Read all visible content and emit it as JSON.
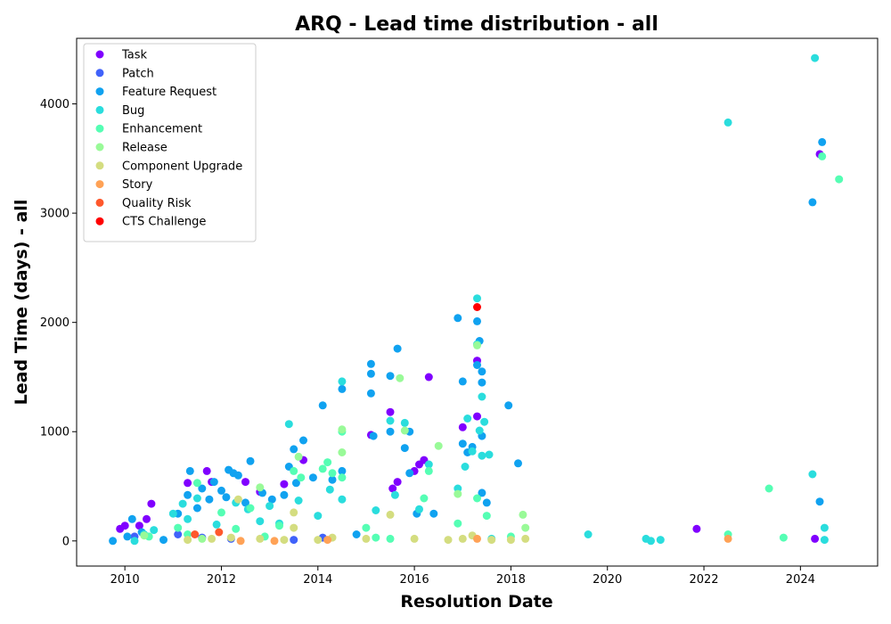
{
  "chart_data": {
    "type": "scatter",
    "title": "ARQ - Lead time distribution - all",
    "xlabel": "Resolution Date",
    "ylabel": "Lead Time (days) - all",
    "xlim": [
      2009.0,
      2025.6
    ],
    "ylim": [
      -230,
      4600
    ],
    "x_ticks": [
      2010,
      2012,
      2014,
      2016,
      2018,
      2020,
      2022,
      2024
    ],
    "y_ticks": [
      0,
      1000,
      2000,
      3000,
      4000
    ],
    "grid": false,
    "legend_position": "top-left",
    "series": [
      {
        "name": "Task",
        "color": "#8000ff",
        "points": [
          [
            2009.9,
            110
          ],
          [
            2010.0,
            140
          ],
          [
            2010.3,
            140
          ],
          [
            2010.45,
            200
          ],
          [
            2010.55,
            340
          ],
          [
            2011.3,
            530
          ],
          [
            2011.7,
            640
          ],
          [
            2011.8,
            540
          ],
          [
            2012.5,
            540
          ],
          [
            2012.8,
            450
          ],
          [
            2013.3,
            520
          ],
          [
            2013.7,
            740
          ],
          [
            2015.1,
            970
          ],
          [
            2015.5,
            1180
          ],
          [
            2015.55,
            480
          ],
          [
            2015.65,
            540
          ],
          [
            2016.0,
            640
          ],
          [
            2016.1,
            700
          ],
          [
            2016.2,
            740
          ],
          [
            2016.3,
            1500
          ],
          [
            2017.0,
            1040
          ],
          [
            2017.3,
            1650
          ],
          [
            2017.3,
            1140
          ],
          [
            2021.85,
            110
          ],
          [
            2024.3,
            20
          ],
          [
            2024.4,
            3540
          ]
        ]
      },
      {
        "name": "Patch",
        "color": "#4062fa",
        "points": [
          [
            2010.2,
            40
          ],
          [
            2011.1,
            60
          ],
          [
            2011.6,
            30
          ],
          [
            2012.2,
            20
          ],
          [
            2013.5,
            10
          ],
          [
            2014.1,
            30
          ]
        ]
      },
      {
        "name": "Feature Request",
        "color": "#10a2f0",
        "points": [
          [
            2009.75,
            0
          ],
          [
            2010.05,
            40
          ],
          [
            2010.15,
            200
          ],
          [
            2010.35,
            80
          ],
          [
            2010.8,
            10
          ],
          [
            2011.1,
            250
          ],
          [
            2011.3,
            420
          ],
          [
            2011.35,
            640
          ],
          [
            2011.5,
            300
          ],
          [
            2011.6,
            480
          ],
          [
            2011.75,
            380
          ],
          [
            2011.85,
            540
          ],
          [
            2012.0,
            460
          ],
          [
            2012.1,
            400
          ],
          [
            2012.15,
            650
          ],
          [
            2012.25,
            620
          ],
          [
            2012.35,
            600
          ],
          [
            2012.5,
            350
          ],
          [
            2012.6,
            730
          ],
          [
            2012.85,
            440
          ],
          [
            2013.05,
            380
          ],
          [
            2013.3,
            420
          ],
          [
            2013.4,
            680
          ],
          [
            2013.5,
            840
          ],
          [
            2013.55,
            530
          ],
          [
            2013.7,
            920
          ],
          [
            2013.9,
            580
          ],
          [
            2014.1,
            1240
          ],
          [
            2014.3,
            560
          ],
          [
            2014.5,
            1390
          ],
          [
            2014.5,
            640
          ],
          [
            2014.8,
            60
          ],
          [
            2015.1,
            1620
          ],
          [
            2015.1,
            1530
          ],
          [
            2015.1,
            1350
          ],
          [
            2015.15,
            960
          ],
          [
            2015.5,
            1510
          ],
          [
            2015.5,
            1000
          ],
          [
            2015.65,
            1760
          ],
          [
            2015.8,
            850
          ],
          [
            2015.9,
            1000
          ],
          [
            2015.9,
            620
          ],
          [
            2016.05,
            250
          ],
          [
            2016.4,
            250
          ],
          [
            2016.9,
            2040
          ],
          [
            2017.0,
            1460
          ],
          [
            2017.0,
            890
          ],
          [
            2017.1,
            810
          ],
          [
            2017.2,
            860
          ],
          [
            2017.3,
            2010
          ],
          [
            2017.3,
            1610
          ],
          [
            2017.35,
            1830
          ],
          [
            2017.4,
            1550
          ],
          [
            2017.4,
            1450
          ],
          [
            2017.4,
            960
          ],
          [
            2017.4,
            440
          ],
          [
            2017.5,
            350
          ],
          [
            2017.95,
            1240
          ],
          [
            2018.15,
            710
          ],
          [
            2024.25,
            3100
          ],
          [
            2024.4,
            360
          ],
          [
            2024.45,
            3650
          ]
        ]
      },
      {
        "name": "Bug",
        "color": "#2adddd",
        "points": [
          [
            2010.2,
            0
          ],
          [
            2010.4,
            60
          ],
          [
            2010.6,
            100
          ],
          [
            2011.0,
            250
          ],
          [
            2011.2,
            340
          ],
          [
            2011.3,
            200
          ],
          [
            2011.5,
            390
          ],
          [
            2011.9,
            150
          ],
          [
            2012.3,
            350
          ],
          [
            2012.55,
            290
          ],
          [
            2012.8,
            180
          ],
          [
            2013.0,
            320
          ],
          [
            2013.2,
            160
          ],
          [
            2013.4,
            1070
          ],
          [
            2013.6,
            370
          ],
          [
            2014.0,
            230
          ],
          [
            2014.25,
            470
          ],
          [
            2014.5,
            1460
          ],
          [
            2014.5,
            380
          ],
          [
            2015.2,
            280
          ],
          [
            2015.5,
            1100
          ],
          [
            2015.6,
            420
          ],
          [
            2015.8,
            1080
          ],
          [
            2016.1,
            290
          ],
          [
            2016.3,
            700
          ],
          [
            2016.9,
            480
          ],
          [
            2017.05,
            680
          ],
          [
            2017.1,
            1120
          ],
          [
            2017.2,
            820
          ],
          [
            2017.3,
            2220
          ],
          [
            2017.3,
            1800
          ],
          [
            2017.35,
            1010
          ],
          [
            2017.4,
            1320
          ],
          [
            2017.4,
            780
          ],
          [
            2017.45,
            1090
          ],
          [
            2017.55,
            790
          ],
          [
            2017.6,
            20
          ],
          [
            2019.6,
            60
          ],
          [
            2020.8,
            20
          ],
          [
            2020.9,
            0
          ],
          [
            2021.1,
            10
          ],
          [
            2022.5,
            3830
          ],
          [
            2024.3,
            4420
          ],
          [
            2024.25,
            610
          ],
          [
            2024.5,
            120
          ],
          [
            2024.5,
            10
          ]
        ]
      },
      {
        "name": "Enhancement",
        "color": "#55feb4",
        "points": [
          [
            2010.5,
            40
          ],
          [
            2011.1,
            120
          ],
          [
            2011.3,
            60
          ],
          [
            2011.5,
            530
          ],
          [
            2012.0,
            260
          ],
          [
            2012.3,
            110
          ],
          [
            2012.6,
            300
          ],
          [
            2012.9,
            40
          ],
          [
            2013.2,
            140
          ],
          [
            2013.5,
            640
          ],
          [
            2013.65,
            580
          ],
          [
            2014.1,
            660
          ],
          [
            2014.2,
            720
          ],
          [
            2014.3,
            620
          ],
          [
            2014.5,
            1000
          ],
          [
            2014.5,
            580
          ],
          [
            2015.0,
            120
          ],
          [
            2015.2,
            30
          ],
          [
            2015.5,
            20
          ],
          [
            2016.2,
            390
          ],
          [
            2016.3,
            640
          ],
          [
            2016.9,
            160
          ],
          [
            2017.3,
            390
          ],
          [
            2017.5,
            230
          ],
          [
            2018.0,
            40
          ],
          [
            2022.5,
            60
          ],
          [
            2023.35,
            480
          ],
          [
            2023.65,
            30
          ],
          [
            2024.45,
            3520
          ],
          [
            2024.8,
            3310
          ]
        ]
      },
      {
        "name": "Release",
        "color": "#99fa98",
        "points": [
          [
            2010.4,
            50
          ],
          [
            2011.6,
            20
          ],
          [
            2012.8,
            490
          ],
          [
            2013.6,
            770
          ],
          [
            2014.5,
            810
          ],
          [
            2014.5,
            1020
          ],
          [
            2015.7,
            1490
          ],
          [
            2015.8,
            1010
          ],
          [
            2016.5,
            870
          ],
          [
            2016.9,
            430
          ],
          [
            2017.3,
            1790
          ],
          [
            2018.25,
            240
          ],
          [
            2018.3,
            120
          ]
        ]
      },
      {
        "name": "Component Upgrade",
        "color": "#d4dd80",
        "points": [
          [
            2011.3,
            10
          ],
          [
            2011.8,
            20
          ],
          [
            2012.2,
            30
          ],
          [
            2012.35,
            380
          ],
          [
            2012.8,
            20
          ],
          [
            2013.3,
            10
          ],
          [
            2013.5,
            260
          ],
          [
            2013.5,
            120
          ],
          [
            2014.0,
            10
          ],
          [
            2014.3,
            30
          ],
          [
            2015.0,
            20
          ],
          [
            2015.5,
            240
          ],
          [
            2016.0,
            20
          ],
          [
            2016.7,
            10
          ],
          [
            2017.0,
            20
          ],
          [
            2017.2,
            50
          ],
          [
            2017.6,
            10
          ],
          [
            2018.0,
            10
          ],
          [
            2018.3,
            20
          ]
        ]
      },
      {
        "name": "Story",
        "color": "#ffa256",
        "points": [
          [
            2012.4,
            0
          ],
          [
            2013.1,
            0
          ],
          [
            2014.2,
            10
          ],
          [
            2017.3,
            20
          ],
          [
            2022.5,
            20
          ]
        ]
      },
      {
        "name": "Quality Risk",
        "color": "#ff582c",
        "points": [
          [
            2011.45,
            60
          ],
          [
            2011.95,
            80
          ]
        ]
      },
      {
        "name": "CTS Challenge",
        "color": "#ff0000",
        "points": [
          [
            2017.3,
            2140
          ]
        ]
      }
    ]
  }
}
